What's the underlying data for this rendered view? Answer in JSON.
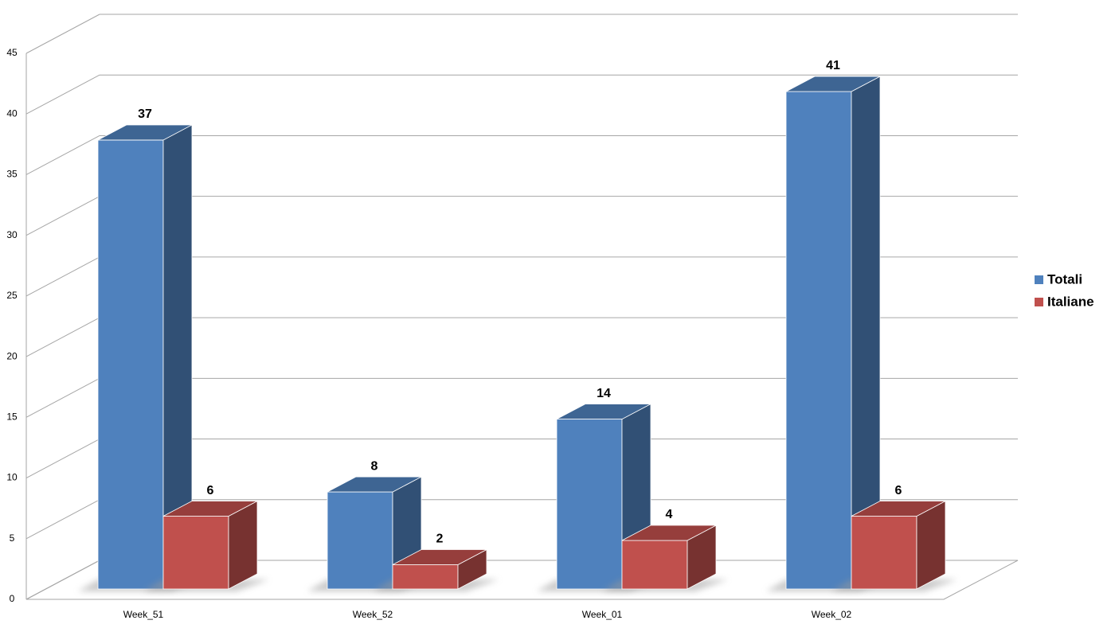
{
  "chart_data": {
    "type": "bar3d",
    "categories": [
      "Week_51",
      "Week_52",
      "Week_01",
      "Week_02"
    ],
    "series": [
      {
        "name": "Totali",
        "color": "#4f81bd",
        "values": [
          37,
          8,
          14,
          41
        ]
      },
      {
        "name": "Italiane",
        "color": "#c0504d",
        "values": [
          6,
          2,
          4,
          6
        ]
      }
    ],
    "ylim": [
      0,
      45
    ],
    "yticks": [
      0,
      5,
      10,
      15,
      20,
      25,
      30,
      35,
      40,
      45
    ],
    "grid": true,
    "legend": "right"
  }
}
